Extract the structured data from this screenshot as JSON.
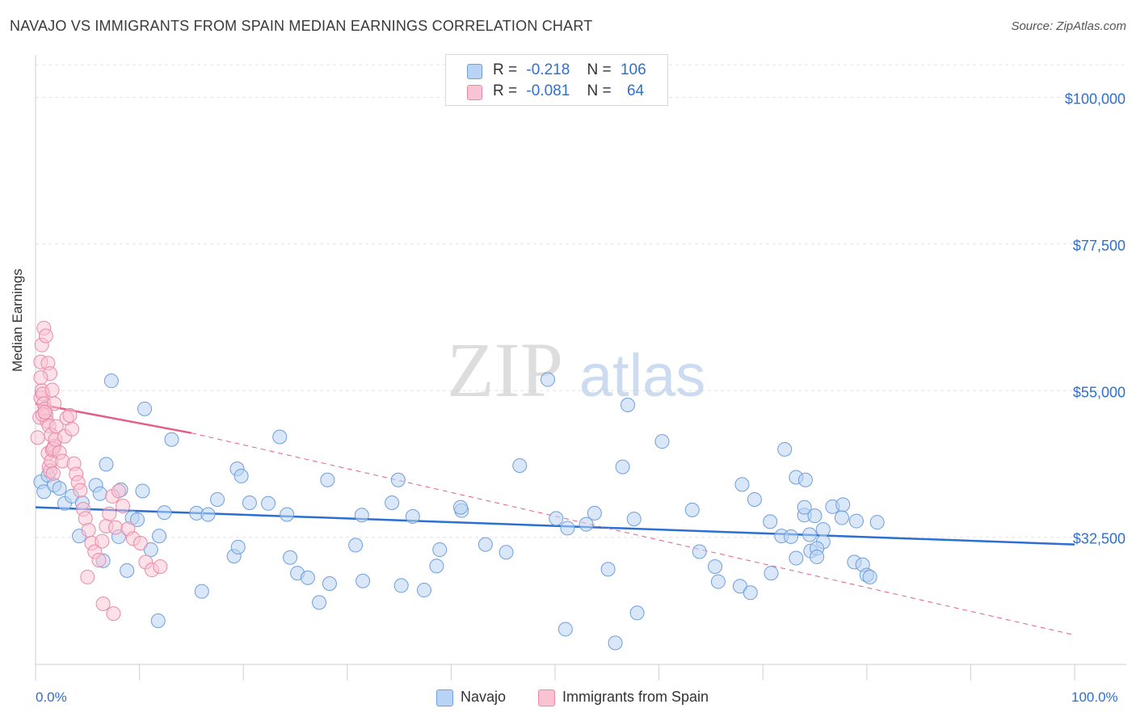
{
  "header": {
    "title": "NAVAJO VS IMMIGRANTS FROM SPAIN MEDIAN EARNINGS CORRELATION CHART",
    "source": "Source: ZipAtlas.com"
  },
  "watermark": {
    "zip": "ZIP",
    "atlas": "atlas"
  },
  "legend": {
    "navajo": {
      "r_label": "R =",
      "r_value": "-0.218",
      "n_label": "N =",
      "n_value": "106"
    },
    "spain": {
      "r_label": "R =",
      "r_value": "-0.081",
      "n_label": "N =",
      "n_value": "64"
    }
  },
  "bottom_legend": {
    "navajo": "Navajo",
    "spain": "Immigrants from Spain"
  },
  "colors": {
    "navajo_fill": "#b9d3f4",
    "navajo_stroke": "#6e9fdc",
    "navajo_line": "#2a6fd3",
    "spain_fill": "#f9c3d3",
    "spain_stroke": "#e98aa8",
    "spain_line": "#e0608a",
    "axis_text": "#2f6fd0",
    "grid": "#e3e3e3"
  },
  "chart_data": {
    "type": "scatter",
    "title": "NAVAJO VS IMMIGRANTS FROM SPAIN MEDIAN EARNINGS CORRELATION CHART",
    "xlabel": "",
    "ylabel": "Median Earnings",
    "xlim": [
      0,
      100
    ],
    "ylim": [
      13000,
      105000
    ],
    "x_tick_labels": [
      "0.0%",
      "100.0%"
    ],
    "y_ticks": [
      32500,
      55000,
      77500,
      100000
    ],
    "y_tick_labels": [
      "$32,500",
      "$55,000",
      "$77,500",
      "$100,000"
    ],
    "grid": true,
    "legend_position": "top-center",
    "series": [
      {
        "name": "Navajo",
        "trend": {
          "x": [
            0,
            100
          ],
          "y": [
            37100,
            31400
          ]
        },
        "points": [
          [
            0.5,
            41000
          ],
          [
            0.8,
            39500
          ],
          [
            1.2,
            42000
          ],
          [
            1.8,
            40500
          ],
          [
            2.3,
            40000
          ],
          [
            2.8,
            37700
          ],
          [
            3.5,
            38800
          ],
          [
            4.2,
            32700
          ],
          [
            4.5,
            37800
          ],
          [
            5.8,
            40500
          ],
          [
            6.2,
            39200
          ],
          [
            6.5,
            28900
          ],
          [
            6.8,
            43700
          ],
          [
            7.3,
            56500
          ],
          [
            8.0,
            32600
          ],
          [
            8.2,
            39800
          ],
          [
            8.8,
            27400
          ],
          [
            9.3,
            35500
          ],
          [
            9.8,
            35200
          ],
          [
            10.3,
            39600
          ],
          [
            10.5,
            52200
          ],
          [
            11.1,
            30600
          ],
          [
            11.9,
            32700
          ],
          [
            12.4,
            36300
          ],
          [
            11.8,
            19700
          ],
          [
            13.1,
            47500
          ],
          [
            15.5,
            36200
          ],
          [
            16.0,
            24200
          ],
          [
            16.6,
            36000
          ],
          [
            17.5,
            38300
          ],
          [
            19.1,
            29600
          ],
          [
            19.4,
            43000
          ],
          [
            19.5,
            31000
          ],
          [
            19.8,
            41900
          ],
          [
            20.6,
            37800
          ],
          [
            22.4,
            37700
          ],
          [
            23.5,
            47900
          ],
          [
            24.2,
            36000
          ],
          [
            24.5,
            29400
          ],
          [
            25.2,
            27000
          ],
          [
            26.2,
            26300
          ],
          [
            27.3,
            22500
          ],
          [
            28.3,
            25400
          ],
          [
            28.1,
            41300
          ],
          [
            30.8,
            31300
          ],
          [
            31.5,
            25800
          ],
          [
            31.4,
            35900
          ],
          [
            34.3,
            37800
          ],
          [
            35.2,
            25100
          ],
          [
            34.9,
            41300
          ],
          [
            36.3,
            35700
          ],
          [
            37.4,
            24400
          ],
          [
            38.6,
            28100
          ],
          [
            38.9,
            30600
          ],
          [
            41.0,
            36600
          ],
          [
            40.9,
            37100
          ],
          [
            43.3,
            31400
          ],
          [
            45.3,
            30200
          ],
          [
            46.6,
            43500
          ],
          [
            49.3,
            56700
          ],
          [
            50.1,
            35400
          ],
          [
            51.2,
            33900
          ],
          [
            51.0,
            18400
          ],
          [
            53.0,
            34500
          ],
          [
            53.8,
            36200
          ],
          [
            55.1,
            27600
          ],
          [
            55.8,
            16300
          ],
          [
            57.0,
            52800
          ],
          [
            57.9,
            20900
          ],
          [
            56.5,
            43300
          ],
          [
            57.6,
            35300
          ],
          [
            60.3,
            47200
          ],
          [
            63.2,
            36700
          ],
          [
            63.9,
            30300
          ],
          [
            65.7,
            25700
          ],
          [
            65.4,
            28000
          ],
          [
            67.8,
            25000
          ],
          [
            68.0,
            40600
          ],
          [
            68.8,
            24000
          ],
          [
            69.2,
            38300
          ],
          [
            70.7,
            34900
          ],
          [
            70.8,
            27000
          ],
          [
            72.1,
            46000
          ],
          [
            71.8,
            32700
          ],
          [
            73.2,
            41700
          ],
          [
            74.1,
            41300
          ],
          [
            72.7,
            32600
          ],
          [
            74.0,
            35900
          ],
          [
            74.6,
            30400
          ],
          [
            74.0,
            37100
          ],
          [
            75.0,
            35800
          ],
          [
            75.8,
            33700
          ],
          [
            75.8,
            31800
          ],
          [
            74.5,
            32900
          ],
          [
            75.2,
            30800
          ],
          [
            76.7,
            37200
          ],
          [
            77.7,
            37500
          ],
          [
            77.6,
            35500
          ],
          [
            79.0,
            35000
          ],
          [
            78.8,
            28700
          ],
          [
            79.6,
            28300
          ],
          [
            80.0,
            26700
          ],
          [
            80.3,
            26400
          ],
          [
            81.0,
            34800
          ],
          [
            75.2,
            29500
          ],
          [
            73.2,
            29300
          ]
        ]
      },
      {
        "name": "Immigrants from Spain",
        "trend": {
          "x": [
            0,
            15
          ],
          "y": [
            53000,
            48500
          ]
        },
        "trend_ext": {
          "x": [
            15,
            100
          ],
          "y": [
            48500,
            17500
          ]
        },
        "points": [
          [
            0.2,
            47800
          ],
          [
            0.4,
            50900
          ],
          [
            0.5,
            53900
          ],
          [
            0.6,
            55000
          ],
          [
            0.7,
            54500
          ],
          [
            0.8,
            53000
          ],
          [
            0.9,
            52200
          ],
          [
            1.0,
            51300
          ],
          [
            1.1,
            50300
          ],
          [
            1.2,
            45400
          ],
          [
            1.3,
            43300
          ],
          [
            1.4,
            42700
          ],
          [
            1.5,
            44200
          ],
          [
            1.6,
            45900
          ],
          [
            1.7,
            42300
          ],
          [
            1.8,
            46500
          ],
          [
            0.5,
            59400
          ],
          [
            0.6,
            62000
          ],
          [
            0.8,
            64600
          ],
          [
            1.0,
            63400
          ],
          [
            1.2,
            59200
          ],
          [
            1.4,
            57600
          ],
          [
            1.6,
            55100
          ],
          [
            1.8,
            53000
          ],
          [
            0.5,
            57000
          ],
          [
            0.7,
            51300
          ],
          [
            0.9,
            51700
          ],
          [
            1.3,
            49600
          ],
          [
            1.5,
            48200
          ],
          [
            1.7,
            46100
          ],
          [
            1.9,
            47500
          ],
          [
            2.0,
            49500
          ],
          [
            2.3,
            45500
          ],
          [
            2.6,
            44200
          ],
          [
            2.8,
            48000
          ],
          [
            3.0,
            50800
          ],
          [
            3.3,
            51200
          ],
          [
            3.5,
            49100
          ],
          [
            3.7,
            43800
          ],
          [
            3.9,
            42200
          ],
          [
            4.1,
            40900
          ],
          [
            4.3,
            39700
          ],
          [
            4.6,
            36800
          ],
          [
            4.8,
            35400
          ],
          [
            5.1,
            33600
          ],
          [
            5.4,
            31600
          ],
          [
            5.7,
            30300
          ],
          [
            6.1,
            29000
          ],
          [
            6.4,
            31900
          ],
          [
            6.8,
            34200
          ],
          [
            7.1,
            36100
          ],
          [
            7.4,
            38800
          ],
          [
            7.7,
            34000
          ],
          [
            8.0,
            39600
          ],
          [
            8.4,
            37300
          ],
          [
            8.9,
            33800
          ],
          [
            9.4,
            32300
          ],
          [
            10.1,
            31600
          ],
          [
            10.6,
            28700
          ],
          [
            11.2,
            27500
          ],
          [
            12.0,
            28000
          ],
          [
            5.0,
            26400
          ],
          [
            6.5,
            22300
          ],
          [
            7.5,
            20800
          ]
        ]
      }
    ]
  }
}
